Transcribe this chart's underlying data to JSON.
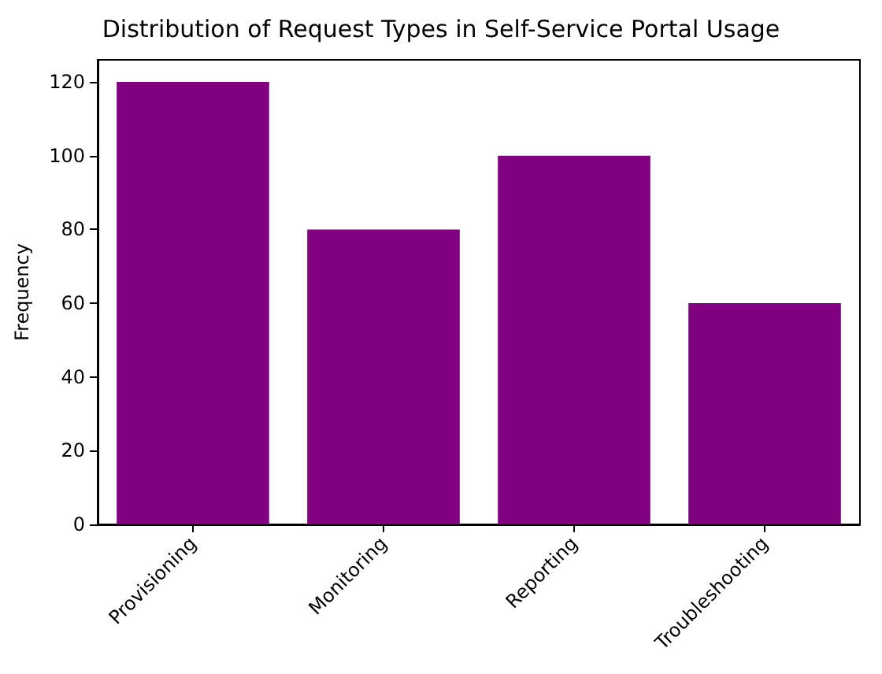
{
  "chart_data": {
    "type": "bar",
    "title": "Distribution of Request Types in Self-Service Portal Usage",
    "ylabel": "Frequency",
    "categories": [
      "Provisioning",
      "Monitoring",
      "Reporting",
      "Troubleshooting"
    ],
    "values": [
      120,
      80,
      100,
      60
    ],
    "color": "#800080",
    "ylim": [
      0,
      126
    ],
    "yticks": [
      0,
      20,
      40,
      60,
      80,
      100,
      120
    ],
    "grid": false
  }
}
